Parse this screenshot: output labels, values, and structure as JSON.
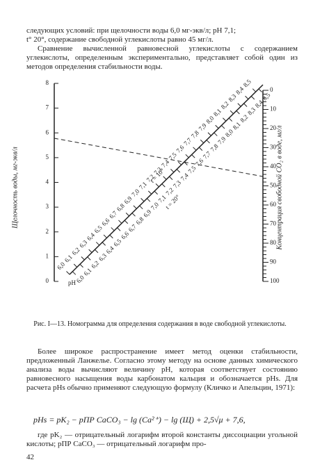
{
  "intro": {
    "lines": [
      "следующих условий: при щелочности воды 6,0 мг-экв/л; pH 7,1;",
      "t° 20°, содержание свободной углекислоты равно 45 мг/л."
    ],
    "paragraph": "Сравнение вычисленной равновесной углекислоты с содержанием углекислоты, определенным экспериментально, представляет собой один из методов определения стабильности воды."
  },
  "figure": {
    "left_axis": {
      "title": "Щелочность воды, мг-экв/л",
      "ticks": [
        "0",
        "1",
        "2",
        "3",
        "4",
        "5",
        "6",
        "7",
        "8"
      ]
    },
    "right_axis": {
      "title": "Концентрация свободной CO₂ в воде, мг/л",
      "ticks": [
        "0",
        "10",
        "20",
        "30",
        "40",
        "50",
        "60",
        "70",
        "80",
        "90",
        "100"
      ]
    },
    "diagonal": {
      "name": "pH",
      "t10": "t = 10°",
      "t20": "t = 20°",
      "labels_left": [
        "6,0",
        "6,1",
        "6,2",
        "6,3",
        "6,4",
        "6,5",
        "6,6",
        "6,7",
        "6,8",
        "6,9",
        "7,0",
        "7,1",
        "7,2",
        "7,3",
        "7,4",
        "7,5",
        "7,6",
        "7,7",
        "7,8",
        "7,9",
        "8,0",
        "8,1",
        "8,2",
        "8,3",
        "8,4",
        "8,5"
      ],
      "labels_right": [
        "6,0",
        "6,1",
        "6,2",
        "6,3",
        "6,4",
        "6,5",
        "6,6",
        "6,7",
        "6,8",
        "6,9",
        "7,0",
        "7,1",
        "7,2",
        "7,3",
        "7,4",
        "7,5",
        "7,6",
        "7,7",
        "7,8",
        "7,9",
        "8,0",
        "8,1",
        "8,2",
        "8,3",
        "8,4",
        "8,5"
      ]
    },
    "caption": "Рис. I—13. Номограмма для определения содержания в воде свободной углекислоты."
  },
  "body": {
    "paragraph": "Более широкое распространение имеет метод оценки стабильности, предложенный Ланжелье. Согласно этому методу на основе данных химического анализа воды вычисляют величину pH, которая соответствует состоянию равновесного насыщения воды карбонатом кальция и обозначается pHs. Для расчета pHs обычно применяют следующую формулу (Кличко и Апельцин, 1971):",
    "formula": "pHs = pK₂ − pПР CaCO₃ − lg (Ca²⁺) − lg (Щ) + 2,5√μ + 7,6,",
    "after": "где pK₂ — отрицательный логарифм второй константы диссоциации угольной кислоты; pПР CaCO₃ — отрицательный логарифм про-"
  },
  "page_number": "42"
}
